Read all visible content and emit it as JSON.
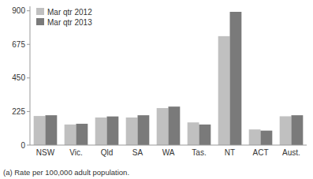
{
  "chart_data": {
    "type": "bar",
    "categories": [
      "NSW",
      "Vic.",
      "Qld",
      "SA",
      "WA",
      "Tas.",
      "NT",
      "ACT",
      "Aust."
    ],
    "series": [
      {
        "name": "Mar qtr 2012",
        "color": "#c0c0c0",
        "values": [
          195,
          138,
          185,
          185,
          248,
          152,
          730,
          105,
          193
        ]
      },
      {
        "name": "Mar qtr 2013",
        "color": "#7a7a7a",
        "values": [
          200,
          143,
          192,
          200,
          258,
          138,
          893,
          97,
          200
        ]
      }
    ],
    "ylim": [
      0,
      930
    ],
    "yticks": [
      0,
      225,
      450,
      675,
      900
    ],
    "grid": false,
    "legend": "upper-left",
    "annotations": [
      "(a) Rate per 100,000 adult population."
    ]
  }
}
